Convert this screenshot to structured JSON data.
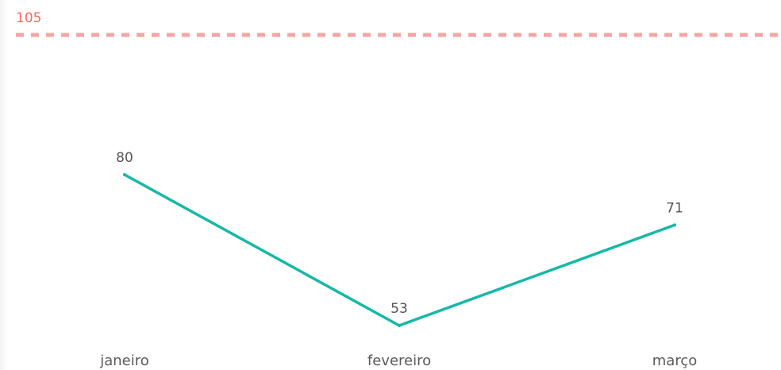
{
  "chart_data": {
    "type": "line",
    "categories": [
      "janeiro",
      "fevereiro",
      "março"
    ],
    "series": [
      {
        "values": [
          80,
          53,
          71
        ],
        "color": "#17b8a6"
      }
    ],
    "reference_line": {
      "value": 105,
      "label": "105",
      "color": "#f4a6a2",
      "label_color": "#f46a5e",
      "style": "dashed"
    },
    "ylim": [
      45,
      110
    ],
    "grid": false,
    "legend": "none"
  }
}
